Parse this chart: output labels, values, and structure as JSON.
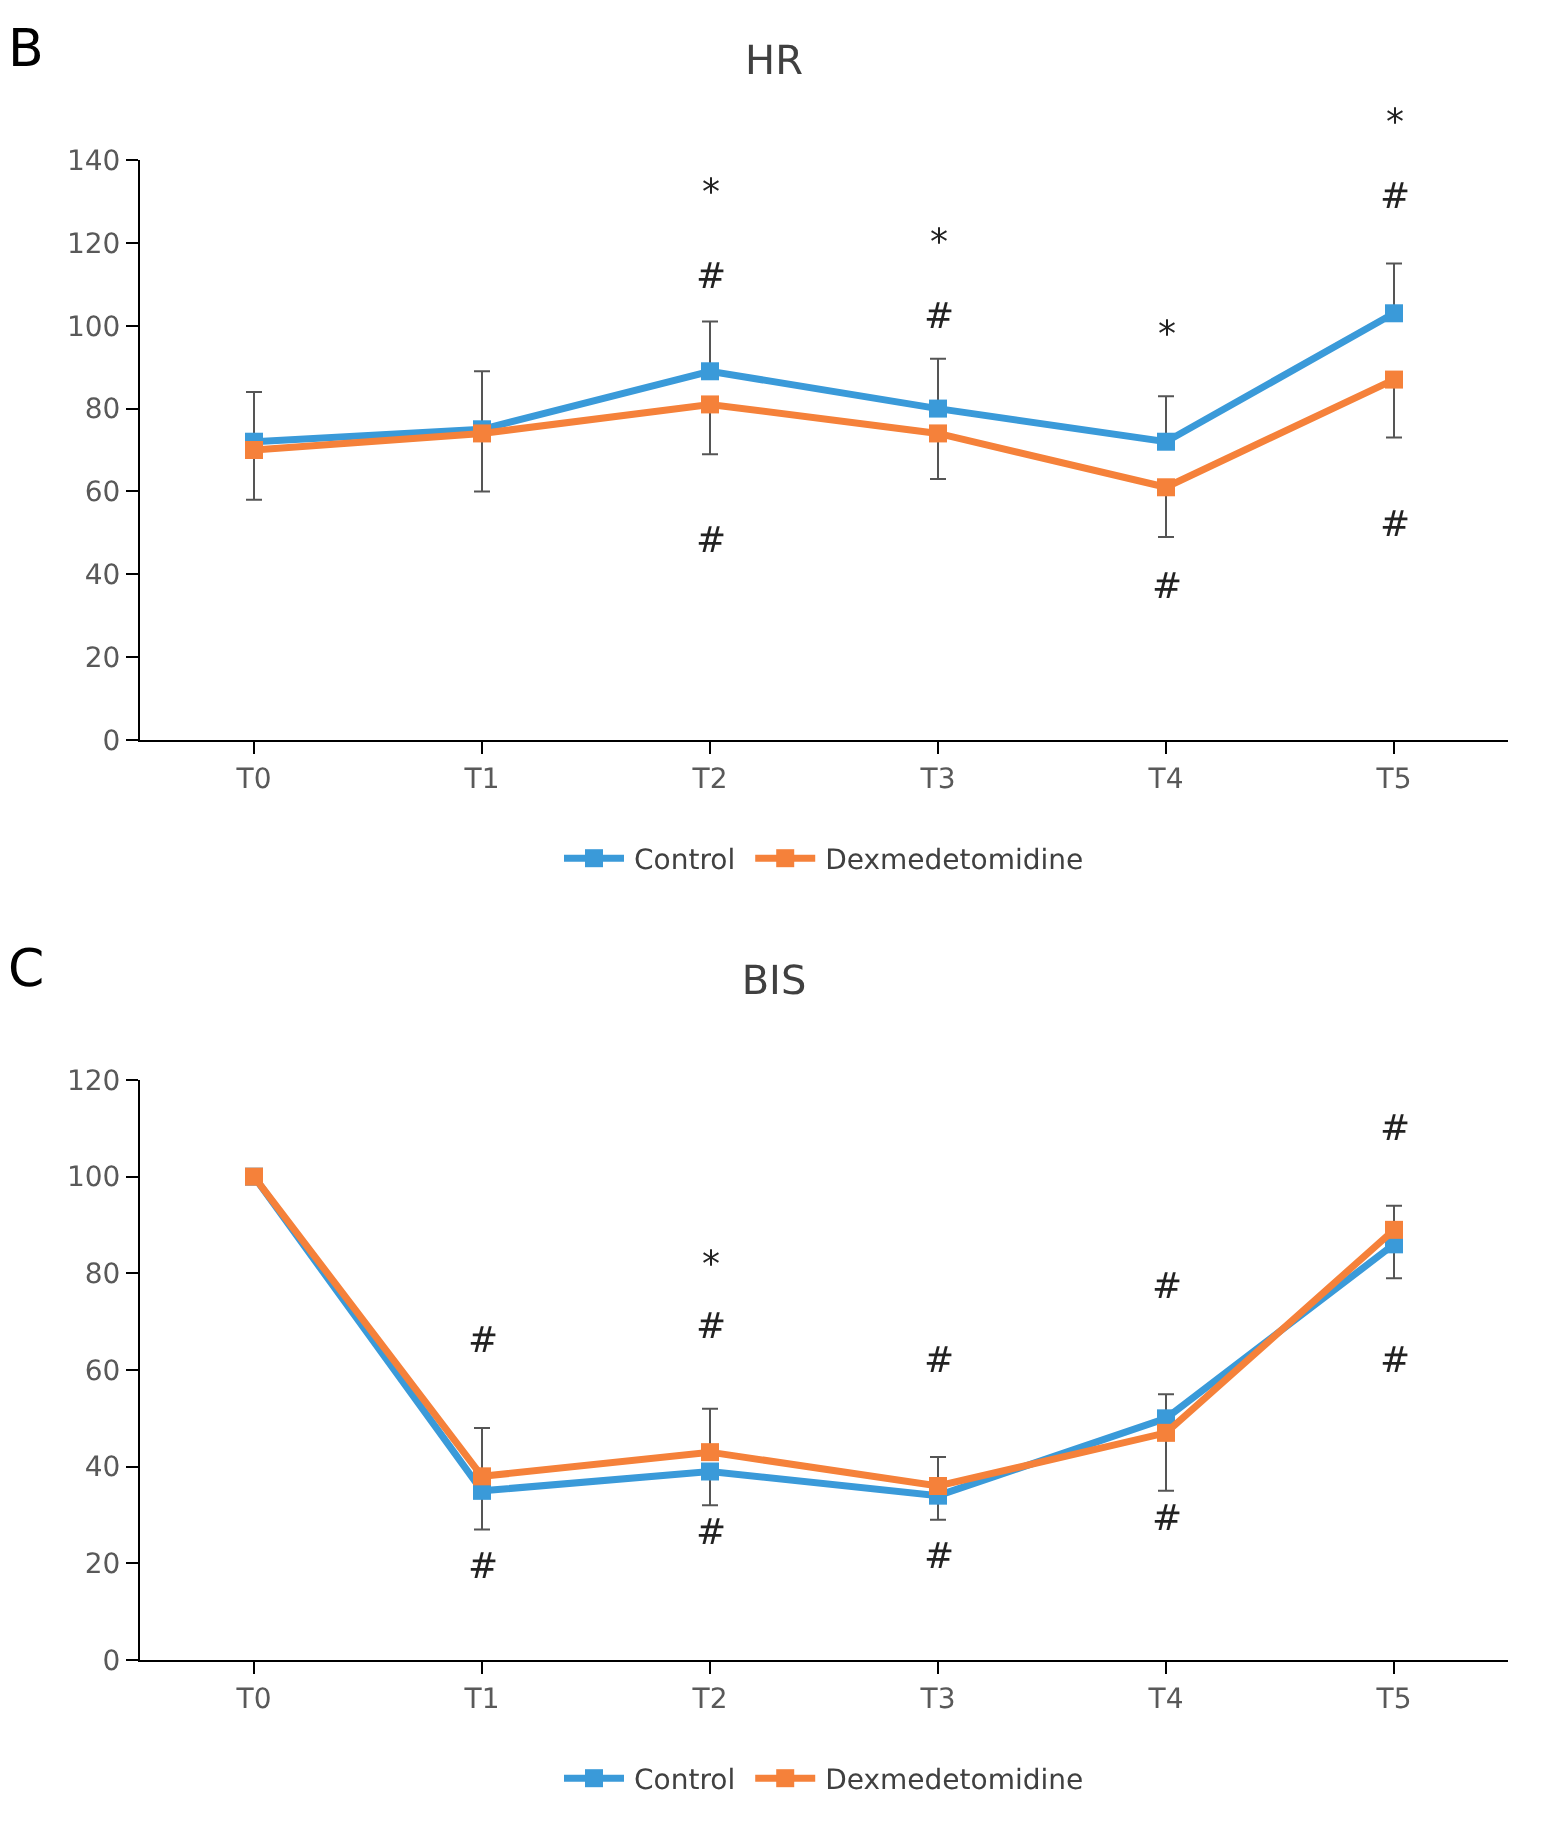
{
  "chart_data": [
    {
      "type": "line",
      "title": "HR",
      "annotations": [
        "B",
        "*",
        "#",
        "#",
        "*",
        "#",
        "*",
        "#",
        "*",
        "#",
        "#"
      ],
      "categories": [
        "T0",
        "T1",
        "T2",
        "T3",
        "T4",
        "T5"
      ],
      "series": [
        {
          "name": "Control",
          "color": "#3a9ad9",
          "values": [
            72,
            75,
            89,
            80,
            72,
            103
          ],
          "errors": [
            [
              72,
              84
            ],
            [
              75,
              89
            ],
            [
              89,
              101
            ],
            [
              80,
              92
            ],
            [
              72,
              83
            ],
            [
              103,
              115
            ]
          ]
        },
        {
          "name": "Dexmedetomidine",
          "color": "#f5813a",
          "values": [
            70,
            74,
            81,
            74,
            61,
            87
          ],
          "errors": [
            [
              58,
              70
            ],
            [
              60,
              74
            ],
            [
              69,
              81
            ],
            [
              63,
              74
            ],
            [
              49,
              61
            ],
            [
              73,
              87
            ]
          ]
        }
      ],
      "ylim": [
        0,
        140
      ],
      "yticks": [
        0,
        20,
        40,
        60,
        80,
        100,
        120,
        140
      ],
      "grid": false,
      "legend": "bottom",
      "marker": "square",
      "line_style": "solid"
    },
    {
      "type": "line",
      "title": "BIS",
      "annotations": [
        "C",
        "#",
        "#",
        "*",
        "#",
        "#",
        "#",
        "#",
        "#",
        "#",
        "#",
        "#"
      ],
      "categories": [
        "T0",
        "T1",
        "T2",
        "T3",
        "T4",
        "T5"
      ],
      "series": [
        {
          "name": "Control",
          "color": "#3a9ad9",
          "values": [
            100,
            35,
            39,
            34,
            50,
            86
          ],
          "errors": [
            null,
            [
              27,
              35
            ],
            [
              32,
              39
            ],
            [
              29,
              34
            ],
            [
              50,
              55
            ],
            [
              79,
              86
            ]
          ]
        },
        {
          "name": "Dexmedetomidine",
          "color": "#f5813a",
          "values": [
            100,
            38,
            43,
            36,
            47,
            89
          ],
          "errors": [
            null,
            [
              38,
              48
            ],
            [
              43,
              52
            ],
            [
              36,
              42
            ],
            [
              35,
              47
            ],
            [
              89,
              94
            ]
          ]
        }
      ],
      "ylim": [
        0,
        120
      ],
      "yticks": [
        0,
        20,
        40,
        60,
        80,
        100,
        120
      ],
      "grid": false,
      "legend": "bottom",
      "marker": "square",
      "line_style": "solid"
    }
  ]
}
